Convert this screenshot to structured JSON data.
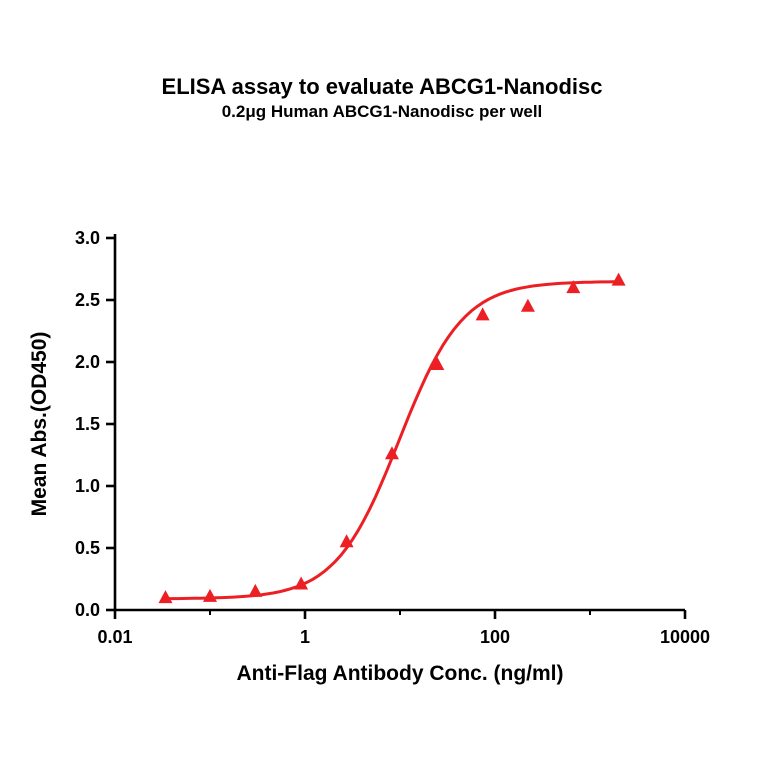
{
  "chart_data": {
    "type": "scatter",
    "title": "ELISA assay to evaluate ABCG1-Nanodisc",
    "subtitle": "0.2μg Human ABCG1-Nanodisc per well",
    "xlabel": "Anti-Flag Antibody Conc. (ng/ml)",
    "ylabel": "Mean Abs.(OD450)",
    "x_scale": "log10",
    "xlim": [
      0.01,
      10000
    ],
    "ylim": [
      0.0,
      3.0
    ],
    "x_major_ticks": [
      0.01,
      1,
      100,
      10000
    ],
    "x_major_tick_labels": [
      "0.01",
      "1",
      "100",
      "10000"
    ],
    "x_minor_ticks": [
      0.1,
      10,
      1000
    ],
    "y_ticks": [
      0.0,
      0.5,
      1.0,
      1.5,
      2.0,
      2.5,
      3.0
    ],
    "y_tick_labels": [
      "0.0",
      "0.5",
      "1.0",
      "1.5",
      "2.0",
      "2.5",
      "3.0"
    ],
    "grid": false,
    "legend": "none",
    "accent_color": "#EC2024",
    "axis_color": "#000000",
    "series": [
      {
        "name": "Human ABCG1-Nanodisc",
        "marker": "triangle",
        "color": "#EC2024",
        "points": [
          {
            "x": 0.034,
            "y": 0.1
          },
          {
            "x": 0.1,
            "y": 0.11
          },
          {
            "x": 0.3,
            "y": 0.15
          },
          {
            "x": 0.91,
            "y": 0.21
          },
          {
            "x": 2.74,
            "y": 0.55
          },
          {
            "x": 8.23,
            "y": 1.26
          },
          {
            "x": 24.7,
            "y": 1.98
          },
          {
            "x": 74.1,
            "y": 2.38
          },
          {
            "x": 222,
            "y": 2.45
          },
          {
            "x": 667,
            "y": 2.6
          },
          {
            "x": 2000,
            "y": 2.66
          }
        ]
      }
    ],
    "fit_curve": {
      "model": "4PL",
      "bottom": 0.09,
      "top": 2.65,
      "ec50": 9.8,
      "hill": 1.3,
      "x_start": 0.034,
      "x_end": 2000
    }
  }
}
